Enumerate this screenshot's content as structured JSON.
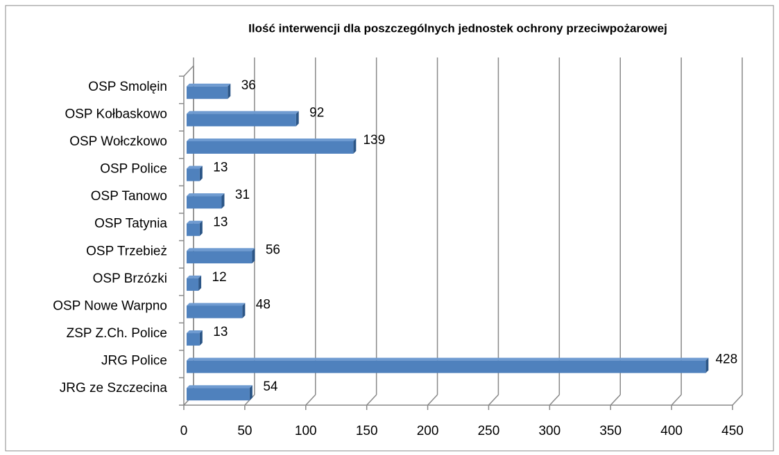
{
  "chart_data": {
    "type": "bar",
    "orientation": "horizontal",
    "title": "Ilość interwencji dla poszczególnych jednostek ochrony przeciwpożarowej",
    "categories": [
      "OSP Smolęin",
      "OSP Kołbaskowo",
      "OSP Wołczkowo",
      "OSP Police",
      "OSP Tanowo",
      "OSP Tatynia",
      "OSP Trzebież",
      "OSP Brzózki",
      "OSP Nowe Warpno",
      "ZSP Z.Ch. Police",
      "JRG Police",
      "JRG ze Szczecina"
    ],
    "values": [
      36,
      92,
      139,
      13,
      31,
      13,
      56,
      12,
      48,
      13,
      428,
      54
    ],
    "color": "#4f81bd",
    "xlim": [
      0,
      450
    ],
    "xticks": [
      0,
      50,
      100,
      150,
      200,
      250,
      300,
      350,
      400,
      450
    ],
    "grid": true
  }
}
